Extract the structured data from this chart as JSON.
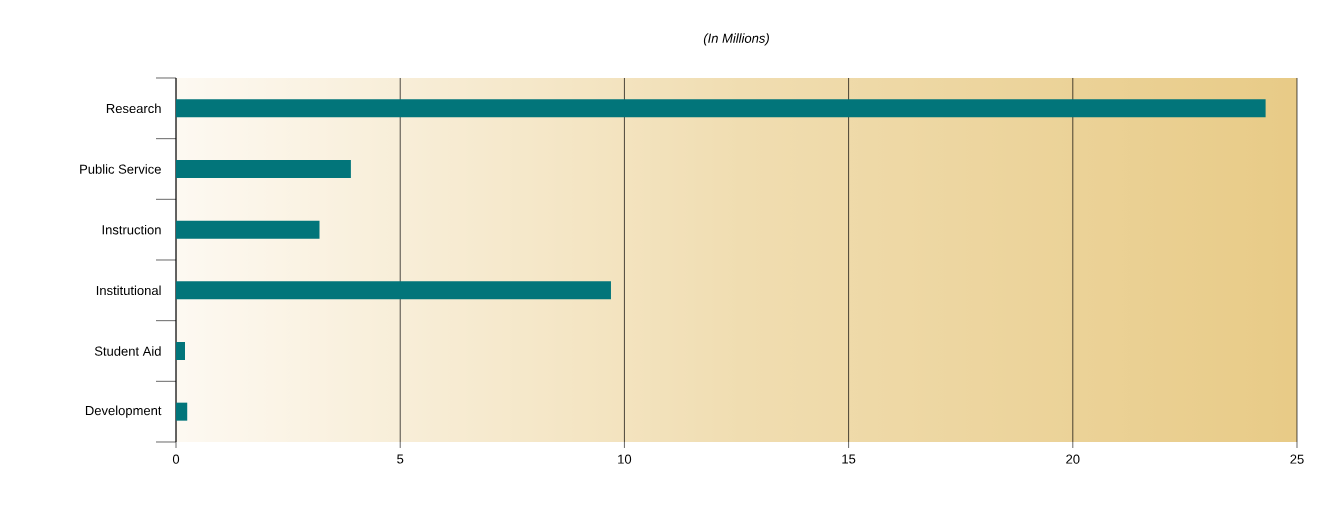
{
  "chart_data": {
    "type": "bar",
    "orientation": "horizontal",
    "title": "(In Millions)",
    "categories": [
      "Research",
      "Public Service",
      "Instruction",
      "Institutional",
      "Student Aid",
      "Development"
    ],
    "values": [
      24.3,
      3.9,
      3.2,
      9.7,
      0.2,
      0.25
    ],
    "color": "#02757a",
    "xlim": [
      0,
      25
    ],
    "xticks": [
      0,
      5,
      10,
      15,
      20,
      25
    ],
    "grid": "x"
  }
}
